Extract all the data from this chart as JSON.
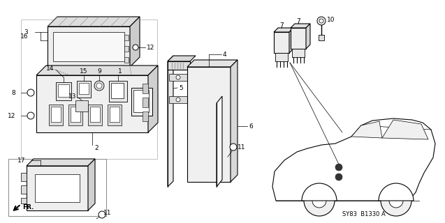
{
  "background_color": "#ffffff",
  "line_color": "#000000",
  "gray_light": "#cccccc",
  "gray_mid": "#999999",
  "gray_dark": "#555555",
  "figsize": [
    6.37,
    3.2
  ],
  "dpi": 100,
  "diagram_code": "SY83  B1330 A"
}
